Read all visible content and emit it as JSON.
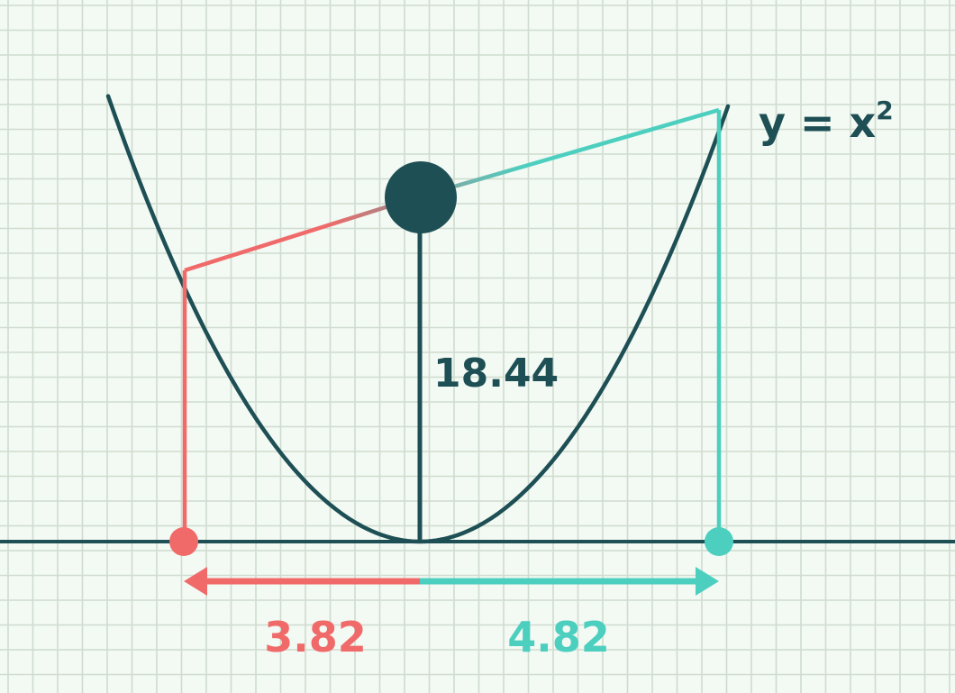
{
  "equation": {
    "base": "y = x",
    "exponent": "2"
  },
  "labels": {
    "height_value": "18.44",
    "left_distance": "3.82",
    "right_distance": "4.82"
  },
  "colors": {
    "background": "#f3f9f3",
    "grid": "#cfdccf",
    "curve": "#1d4f55",
    "left": "#f06a6a",
    "right": "#4ccfbf"
  }
}
